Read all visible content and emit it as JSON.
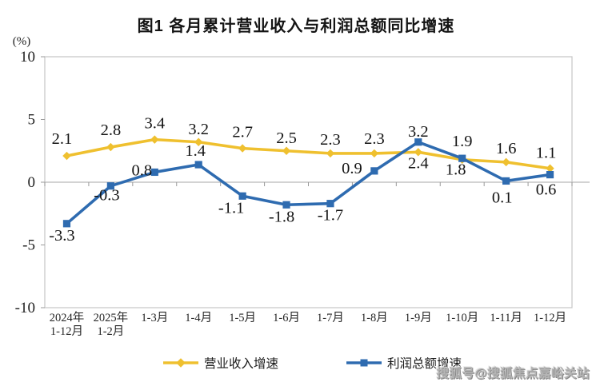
{
  "title": {
    "text": "图1 各月累计营业收入与利润总额同比增速"
  },
  "watermark": {
    "text": "搜狐号@搜狐焦点嘉峪关站"
  },
  "chart_data": {
    "type": "line",
    "title": "图1 各月累计营业收入与利润总额同比增速",
    "y_unit": "(%)",
    "ylim": [
      -10,
      10
    ],
    "yticks": [
      10,
      5,
      0,
      -5,
      -10
    ],
    "grid": "zero-line-only",
    "legend_position": "bottom",
    "categories": [
      "2024年\n1-12月",
      "2025年\n1-2月",
      "1-3月",
      "1-4月",
      "1-5月",
      "1-6月",
      "1-7月",
      "1-8月",
      "1-9月",
      "1-10月",
      "1-11月",
      "1-12月"
    ],
    "series": [
      {
        "id": "revenue-growth",
        "name": "营业收入增速",
        "color": "#EFC02F",
        "marker": "diamond",
        "values": [
          2.1,
          2.8,
          3.4,
          3.2,
          2.7,
          2.5,
          2.3,
          2.3,
          2.4,
          1.8,
          1.6,
          1.1
        ],
        "label_offsets": [
          [
            -6,
            -15
          ],
          [
            0,
            -15
          ],
          [
            0,
            -14
          ],
          [
            0,
            -10
          ],
          [
            0,
            -14
          ],
          [
            0,
            -10
          ],
          [
            0,
            -11
          ],
          [
            0,
            -12
          ],
          [
            0,
            20
          ],
          [
            -8,
            19
          ],
          [
            0,
            -11
          ],
          [
            -5,
            -13
          ]
        ]
      },
      {
        "id": "profit-growth",
        "name": "利润总额增速",
        "color": "#2E6BB0",
        "marker": "square",
        "values": [
          -3.3,
          -0.3,
          0.8,
          1.4,
          -1.1,
          -1.8,
          -1.7,
          0.9,
          3.2,
          1.9,
          0.1,
          0.6
        ],
        "label_offsets": [
          [
            -6,
            21
          ],
          [
            -5,
            18
          ],
          [
            -16,
            4
          ],
          [
            -4,
            -11
          ],
          [
            -14,
            21
          ],
          [
            -6,
            21
          ],
          [
            0,
            21
          ],
          [
            -28,
            3
          ],
          [
            0,
            -7
          ],
          [
            0,
            -15
          ],
          [
            -5,
            27
          ],
          [
            -5,
            25
          ]
        ]
      }
    ],
    "axis_color": "#c6c6c6",
    "gridline_color": "#b9b9b9",
    "tick_color": "#9a9a9a"
  }
}
